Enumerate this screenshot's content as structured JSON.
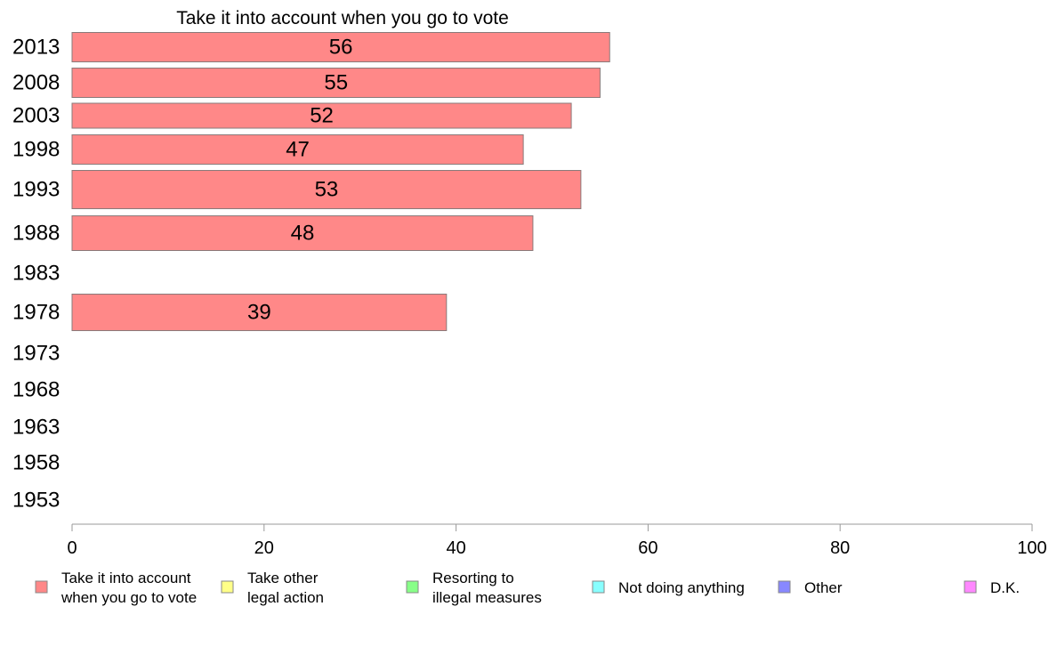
{
  "chart_data": {
    "type": "bar",
    "orientation": "horizontal",
    "title": "Take it into account when you go to vote",
    "categories": [
      "2013",
      "2008",
      "2003",
      "1998",
      "1993",
      "1988",
      "1983",
      "1978",
      "1973",
      "1968",
      "1963",
      "1958",
      "1953"
    ],
    "series": [
      {
        "name": "Take it into account when you go to vote",
        "color": "#ff8888",
        "values": [
          56,
          55,
          52,
          47,
          53,
          48,
          null,
          39,
          null,
          null,
          null,
          null,
          null
        ]
      }
    ],
    "xlim": [
      0,
      100
    ],
    "xticks": [
      "0",
      "20",
      "40",
      "60",
      "80",
      "100"
    ],
    "grid": false,
    "legend_position": "bottom",
    "legend": [
      {
        "lines": [
          "Take it into account",
          "when you go to vote"
        ],
        "color": "#ff8888"
      },
      {
        "lines": [
          "Take other",
          "legal action"
        ],
        "color": "#ffff88"
      },
      {
        "lines": [
          "Resorting to",
          "illegal measures"
        ],
        "color": "#88ff88"
      },
      {
        "lines": [
          "Not doing anything"
        ],
        "color": "#88ffff"
      },
      {
        "lines": [
          "Other"
        ],
        "color": "#8888ff"
      },
      {
        "lines": [
          "D.K."
        ],
        "color": "#ff88ff"
      }
    ]
  }
}
